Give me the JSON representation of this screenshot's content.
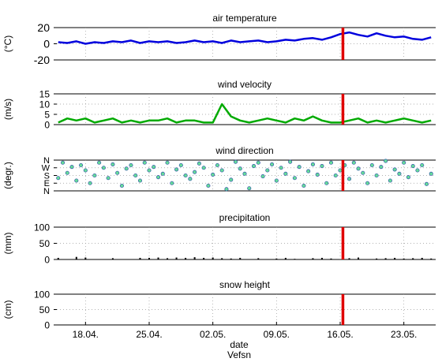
{
  "figure": {
    "xlabel": "date",
    "footer": "Vefsn",
    "x_tick_labels": [
      "18.04.",
      "25.04.",
      "02.05.",
      "09.05.",
      "16.05.",
      "23.05."
    ],
    "x_tick_days": [
      3,
      10,
      17,
      24,
      31,
      38
    ],
    "x_range_days": [
      -0.5,
      41.5
    ],
    "marker_day": 31.3,
    "marker_color": "#e00000"
  },
  "panels": [
    {
      "title": "air temperature",
      "ylabel": "(°C)",
      "yticks": [
        "20",
        "0",
        "-20"
      ],
      "ytick_values": [
        20,
        0,
        -20
      ],
      "ylim": [
        -20,
        20
      ],
      "color": "#0000dd"
    },
    {
      "title": "wind velocity",
      "ylabel": "(m/s)",
      "yticks": [
        "15",
        "10",
        "5",
        "0"
      ],
      "ytick_values": [
        15,
        10,
        5,
        0
      ],
      "ylim": [
        0,
        15
      ],
      "color": "#00aa00"
    },
    {
      "title": "wind direction",
      "ylabel": "(degr.)",
      "yticks": [
        "N",
        "W",
        "S",
        "E",
        "N"
      ],
      "ytick_values": [
        360,
        270,
        180,
        90,
        0
      ],
      "ylim": [
        0,
        360
      ],
      "color": "#00aa88"
    },
    {
      "title": "precipitation",
      "ylabel": "(mm)",
      "yticks": [
        "100",
        "50",
        "0"
      ],
      "ytick_values": [
        100,
        50,
        0
      ],
      "ylim": [
        0,
        100
      ],
      "color": "#000000"
    },
    {
      "title": "snow height",
      "ylabel": "(cm)",
      "yticks": [
        "100",
        "50",
        "0"
      ],
      "ytick_values": [
        100,
        50,
        0
      ],
      "ylim": [
        0,
        100
      ],
      "color": "#000000"
    }
  ],
  "chart_data": [
    {
      "type": "line",
      "title": "air temperature",
      "ylabel": "(°C)",
      "ylim": [
        -20,
        20
      ],
      "x": [
        0,
        1,
        2,
        3,
        4,
        5,
        6,
        7,
        8,
        9,
        10,
        11,
        12,
        13,
        14,
        15,
        16,
        17,
        18,
        19,
        20,
        21,
        22,
        23,
        24,
        25,
        26,
        27,
        28,
        29,
        30,
        31,
        32,
        33,
        34,
        35,
        36,
        37,
        38,
        39,
        40,
        41
      ],
      "values": [
        2,
        1,
        3,
        0,
        2,
        1,
        3,
        2,
        4,
        1,
        3,
        2,
        3,
        1,
        2,
        4,
        2,
        3,
        1,
        4,
        2,
        3,
        4,
        2,
        3,
        5,
        4,
        6,
        7,
        5,
        8,
        12,
        14,
        11,
        9,
        13,
        10,
        8,
        9,
        6,
        5,
        8
      ]
    },
    {
      "type": "line",
      "title": "wind velocity",
      "ylabel": "(m/s)",
      "ylim": [
        0,
        15
      ],
      "x": [
        0,
        1,
        2,
        3,
        4,
        5,
        6,
        7,
        8,
        9,
        10,
        11,
        12,
        13,
        14,
        15,
        16,
        17,
        18,
        19,
        20,
        21,
        22,
        23,
        24,
        25,
        26,
        27,
        28,
        29,
        30,
        31,
        32,
        33,
        34,
        35,
        36,
        37,
        38,
        39,
        40,
        41
      ],
      "values": [
        1,
        3,
        2,
        3,
        1,
        2,
        3,
        1,
        2,
        1,
        2,
        2,
        3,
        1,
        2,
        2,
        1,
        1,
        10,
        4,
        2,
        1,
        2,
        3,
        2,
        1,
        3,
        2,
        4,
        2,
        1,
        1,
        2,
        3,
        1,
        2,
        1,
        2,
        3,
        2,
        1,
        2
      ]
    },
    {
      "type": "scatter",
      "title": "wind direction",
      "ylabel": "(degr.)",
      "ylim": [
        0,
        360
      ],
      "x": [
        0,
        0.5,
        1,
        1.5,
        2,
        2.5,
        3,
        3.5,
        4,
        4.5,
        5,
        5.5,
        6,
        6.5,
        7,
        7.5,
        8,
        8.5,
        9,
        9.5,
        10,
        10.5,
        11,
        11.5,
        12,
        12.5,
        13,
        13.5,
        14,
        14.5,
        15,
        15.5,
        16,
        16.5,
        17,
        17.5,
        18,
        18.5,
        19,
        19.5,
        20,
        20.5,
        21,
        21.5,
        22,
        22.5,
        23,
        23.5,
        24,
        24.5,
        25,
        25.5,
        26,
        26.5,
        27,
        27.5,
        28,
        28.5,
        29,
        29.5,
        30,
        30.5,
        31,
        31.5,
        32,
        32.5,
        33,
        33.5,
        34,
        34.5,
        35,
        35.5,
        36,
        36.5,
        37,
        37.5,
        38,
        38.5,
        39,
        39.5,
        40,
        40.5,
        41
      ],
      "values": [
        150,
        330,
        210,
        280,
        120,
        300,
        240,
        90,
        180,
        330,
        270,
        150,
        310,
        210,
        60,
        260,
        300,
        180,
        120,
        330,
        240,
        280,
        160,
        200,
        330,
        90,
        250,
        300,
        180,
        140,
        220,
        320,
        270,
        60,
        190,
        300,
        240,
        20,
        130,
        340,
        260,
        200,
        30,
        290,
        330,
        170,
        240,
        310,
        120,
        270,
        200,
        340,
        150,
        280,
        60,
        230,
        310,
        190,
        290,
        90,
        330,
        180,
        240,
        300,
        140,
        330,
        260,
        210,
        90,
        300,
        180,
        280,
        350,
        120,
        250,
        200,
        330,
        160,
        290,
        240,
        300,
        80,
        200
      ]
    },
    {
      "type": "bar",
      "title": "precipitation",
      "ylabel": "(mm)",
      "ylim": [
        0,
        100
      ],
      "x": [
        0,
        2,
        3,
        6,
        9,
        10,
        11,
        12,
        13,
        14,
        15,
        16,
        17,
        18,
        19,
        20,
        22,
        24,
        25,
        26,
        28,
        29,
        30,
        32,
        33,
        35,
        36,
        37,
        38,
        39,
        40,
        41
      ],
      "values": [
        5,
        8,
        6,
        4,
        5,
        5,
        6,
        4,
        6,
        5,
        7,
        5,
        6,
        4,
        3,
        5,
        4,
        3,
        5,
        2,
        4,
        5,
        3,
        4,
        6,
        3,
        4,
        5,
        3,
        4,
        5,
        3
      ]
    },
    {
      "type": "line",
      "title": "snow height",
      "ylabel": "(cm)",
      "ylim": [
        0,
        100
      ],
      "x": [],
      "values": []
    }
  ]
}
